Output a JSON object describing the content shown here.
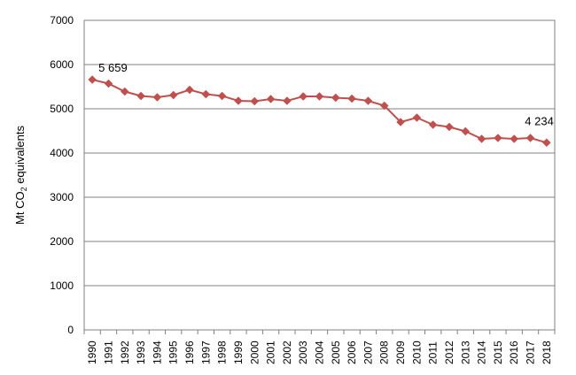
{
  "chart_data": {
    "type": "line",
    "x": [
      "1990",
      "1991",
      "1992",
      "1993",
      "1994",
      "1995",
      "1996",
      "1997",
      "1998",
      "1999",
      "2000",
      "2001",
      "2002",
      "2003",
      "2004",
      "2005",
      "2006",
      "2007",
      "2008",
      "2009",
      "2010",
      "2011",
      "2012",
      "2013",
      "2014",
      "2015",
      "2016",
      "2017",
      "2018"
    ],
    "series": [
      {
        "values": [
          5659,
          5570,
          5390,
          5290,
          5260,
          5310,
          5430,
          5330,
          5290,
          5180,
          5170,
          5220,
          5180,
          5280,
          5280,
          5250,
          5230,
          5180,
          5070,
          4700,
          4800,
          4640,
          4590,
          4490,
          4320,
          4340,
          4320,
          4340,
          4234
        ],
        "color": "#c0504d"
      }
    ],
    "ylabel_main": "Mt CO",
    "ylabel_sub": "2",
    "ylabel_rest": " equivalents",
    "ylim": [
      0,
      7000
    ],
    "yticks": [
      "0",
      "1000",
      "2000",
      "3000",
      "4000",
      "5000",
      "6000",
      "7000"
    ],
    "annotations": [
      "5 659",
      "4 234"
    ],
    "grid": true,
    "legend": "none",
    "gridline_color": "#808080",
    "axis_color": "#808080",
    "marker": "diamond"
  }
}
